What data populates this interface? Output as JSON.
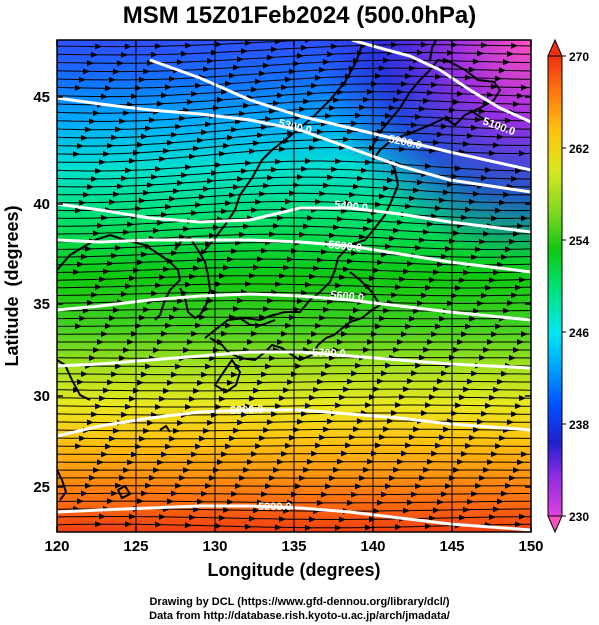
{
  "title": "MSM 15Z01Feb2024 (500.0hPa)",
  "xlabel": "Longitude (degrees)",
  "ylabel": "Latitude  (degrees)",
  "xticks": [
    "120",
    "125",
    "130",
    "135",
    "140",
    "145",
    "150"
  ],
  "yticks": [
    "25",
    "30",
    "35",
    "40",
    "45"
  ],
  "colorbar": {
    "min": 230,
    "max": 270,
    "ticks": [
      "270",
      "262",
      "254",
      "246",
      "238",
      "230"
    ],
    "colors": [
      "#ff40a0",
      "#e040e0",
      "#8a2be2",
      "#2020d0",
      "#0050ff",
      "#00a0ff",
      "#00e8f0",
      "#00e070",
      "#10c810",
      "#80d820",
      "#d8e820",
      "#ffc010",
      "#ff7810",
      "#f03010"
    ]
  },
  "contours": [
    {
      "label": "5100.0",
      "value": 5100
    },
    {
      "label": "5200.0",
      "value": 5200
    },
    {
      "label": "5300.0",
      "value": 5300
    },
    {
      "label": "5400.0",
      "value": 5400
    },
    {
      "label": "5500.0",
      "value": 5500
    },
    {
      "label": "5600.0",
      "value": 5600
    },
    {
      "label": "5700.0",
      "value": 5700
    },
    {
      "label": "5800.0",
      "value": 5800
    },
    {
      "label": "5900.0",
      "value": 5900
    }
  ],
  "credit": {
    "line1": "Drawing by DCL (https://www.gfd-dennou.org/library/dcl/)",
    "line2": "Data from http://database.rish.kyoto-u.ac.jp/arch/jmadata/"
  }
}
